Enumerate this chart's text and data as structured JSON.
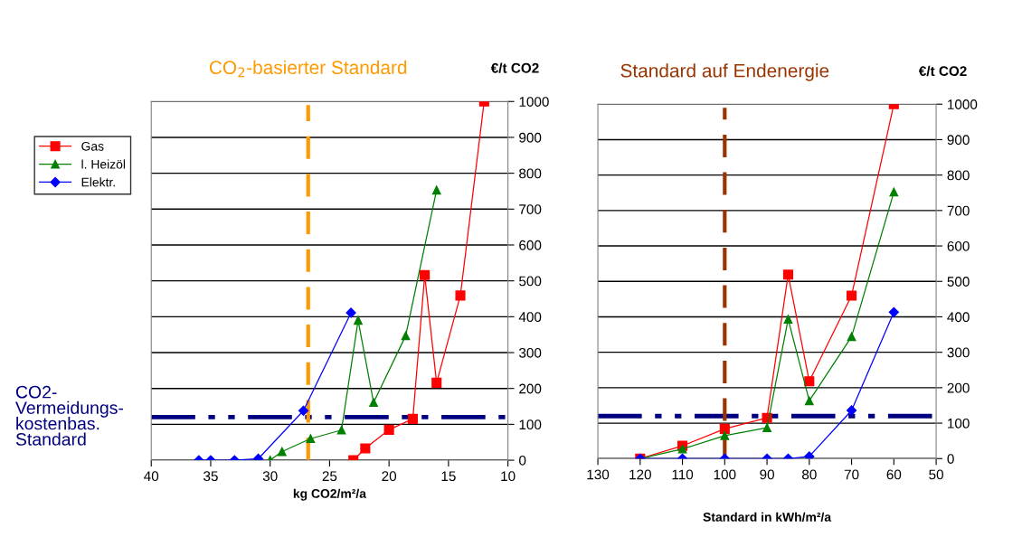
{
  "chart_data": [
    {
      "type": "line",
      "xlabel": "kg CO2/m²/a",
      "ylabel": "€/t CO2",
      "xlim": [
        40,
        10
      ],
      "xticks": [
        40,
        35,
        30,
        25,
        20,
        15,
        10
      ],
      "ylim": [
        0,
        1000
      ],
      "yticks": [
        0,
        100,
        200,
        300,
        400,
        500,
        600,
        700,
        800,
        900,
        1000
      ],
      "grid": "y",
      "legend": "left",
      "series": [
        {
          "name": "Gas",
          "color": "#ff0000",
          "marker": "square",
          "x": [
            23,
            22,
            20,
            18,
            17,
            16,
            14,
            12
          ],
          "values": [
            0,
            33,
            85,
            115,
            516,
            216,
            459,
            1000
          ]
        },
        {
          "name": "l. Heizöl",
          "color": "#008000",
          "marker": "triangle",
          "x": [
            30,
            29,
            26.6,
            24,
            22.6,
            21.3,
            18.6,
            16
          ],
          "values": [
            0,
            24,
            60,
            84,
            390,
            161,
            347,
            753
          ]
        },
        {
          "name": "Elektr.",
          "color": "#0000ff",
          "marker": "diamond",
          "x": [
            36,
            35,
            33,
            31,
            27.2,
            23.2
          ],
          "values": [
            0,
            0,
            0,
            4,
            138,
            411
          ]
        }
      ],
      "ref_lines": [
        {
          "axis": "y",
          "value": 120,
          "label": "CO2-\nVermeidungs-\nkostenbas.\nStandard",
          "color": "#000080",
          "line_style": "dashdotdot"
        },
        {
          "axis": "x",
          "value": 26.8,
          "label": "CO$_{2}$-basierter Standard",
          "color": "#ff9900",
          "line_style": "dashed"
        }
      ]
    },
    {
      "type": "line",
      "xlabel": "Standard in kWh/m²/a",
      "ylabel": "€/t CO2",
      "xlim": [
        130,
        50
      ],
      "xticks": [
        130,
        120,
        110,
        100,
        90,
        80,
        70,
        60,
        50
      ],
      "ylim": [
        0,
        1000
      ],
      "yticks": [
        0,
        100,
        200,
        300,
        400,
        500,
        600,
        700,
        800,
        900,
        1000
      ],
      "grid": "y",
      "series": [
        {
          "color": "#ff0000",
          "marker": "square",
          "x": [
            120,
            110,
            100,
            90,
            85,
            80,
            70,
            60
          ],
          "values": [
            0,
            36,
            84,
            115,
            519,
            218,
            460,
            1000
          ]
        },
        {
          "color": "#008000",
          "marker": "triangle",
          "x": [
            120,
            110,
            100,
            90,
            85,
            80,
            70,
            60
          ],
          "values": [
            0,
            27,
            65,
            87,
            393,
            163,
            344,
            752
          ]
        },
        {
          "color": "#0000ff",
          "marker": "diamond",
          "x": [
            120,
            110,
            100,
            90,
            85,
            80,
            70,
            60
          ],
          "values": [
            0,
            0,
            0,
            0,
            0,
            6,
            136,
            413
          ]
        }
      ],
      "ref_lines": [
        {
          "axis": "y",
          "value": 120,
          "color": "#000080",
          "line_style": "dashdotdot"
        },
        {
          "axis": "x",
          "value": 100,
          "label": "Standard auf Endenergie",
          "color": "#993300",
          "line_style": "dashed"
        }
      ]
    }
  ]
}
